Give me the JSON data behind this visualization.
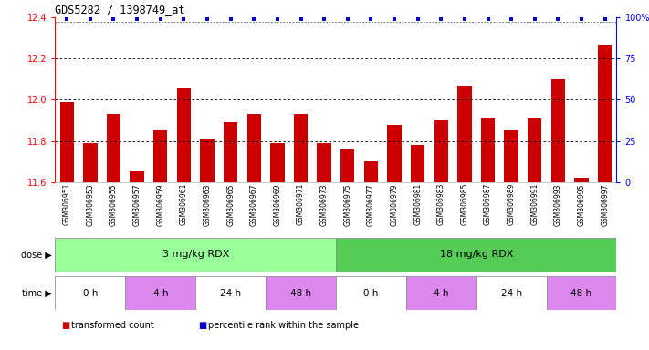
{
  "title": "GDS5282 / 1398749_at",
  "samples": [
    "GSM306951",
    "GSM306953",
    "GSM306955",
    "GSM306957",
    "GSM306959",
    "GSM306961",
    "GSM306963",
    "GSM306965",
    "GSM306967",
    "GSM306969",
    "GSM306971",
    "GSM306973",
    "GSM306975",
    "GSM306977",
    "GSM306979",
    "GSM306981",
    "GSM306983",
    "GSM306985",
    "GSM306987",
    "GSM306989",
    "GSM306991",
    "GSM306993",
    "GSM306995",
    "GSM306997"
  ],
  "bar_values": [
    11.99,
    11.79,
    11.93,
    11.65,
    11.85,
    12.06,
    11.81,
    11.89,
    11.93,
    11.79,
    11.93,
    11.79,
    11.76,
    11.7,
    11.88,
    11.78,
    11.9,
    12.07,
    11.91,
    11.85,
    11.91,
    12.1,
    11.62,
    12.27
  ],
  "bar_color": "#cc0000",
  "percentile_color": "#0000cc",
  "ylim_left": [
    11.6,
    12.4
  ],
  "ylim_right": [
    0,
    100
  ],
  "yticks_left": [
    11.6,
    11.8,
    12.0,
    12.2,
    12.4
  ],
  "yticks_right": [
    0,
    25,
    50,
    75,
    100
  ],
  "ytick_right_labels": [
    "0",
    "25",
    "50",
    "75",
    "100%"
  ],
  "grid_values": [
    11.8,
    12.0,
    12.2
  ],
  "dose_colors": [
    "#99ff99",
    "#55cc55"
  ],
  "dose_labels": [
    "3 mg/kg RDX",
    "18 mg/kg RDX"
  ],
  "time_boundaries": [
    [
      -0.5,
      2.5,
      "#ffffff",
      "0 h"
    ],
    [
      2.5,
      5.5,
      "#dd88ee",
      "4 h"
    ],
    [
      5.5,
      8.5,
      "#ffffff",
      "24 h"
    ],
    [
      8.5,
      11.5,
      "#dd88ee",
      "48 h"
    ],
    [
      11.5,
      14.5,
      "#ffffff",
      "0 h"
    ],
    [
      14.5,
      17.5,
      "#dd88ee",
      "4 h"
    ],
    [
      17.5,
      20.5,
      "#ffffff",
      "24 h"
    ],
    [
      20.5,
      23.5,
      "#dd88ee",
      "48 h"
    ]
  ],
  "legend_items": [
    {
      "label": "transformed count",
      "color": "#cc0000"
    },
    {
      "label": "percentile rank within the sample",
      "color": "#0000cc"
    }
  ],
  "background_color": "#ffffff"
}
